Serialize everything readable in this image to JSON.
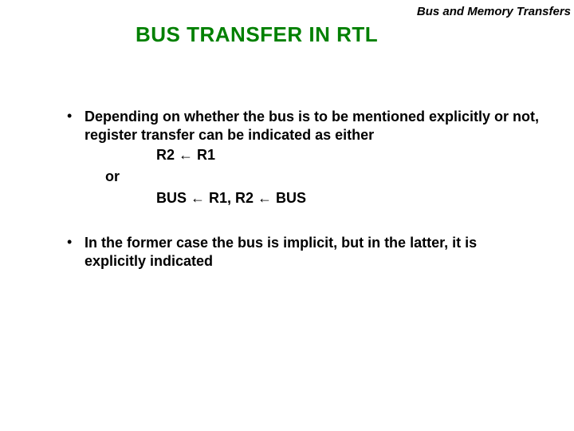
{
  "header": {
    "label": "Bus and Memory Transfers"
  },
  "title": "BUS  TRANSFER  IN  RTL",
  "bullets": {
    "b1": "Depending on whether the bus is to be mentioned explicitly or not, register transfer can be indicated as either",
    "eq1": "R2 ← R1",
    "or": "or",
    "eq2": "BUS ← R1, R2 ← BUS",
    "b2": "In the former case the bus is implicit, but in the latter, it is explicitly indicated"
  },
  "colors": {
    "title": "#008000",
    "text": "#000000",
    "background": "#ffffff"
  },
  "typography": {
    "title_fontsize": 26,
    "body_fontsize": 18,
    "header_fontsize": 15,
    "font_family": "Arial"
  }
}
